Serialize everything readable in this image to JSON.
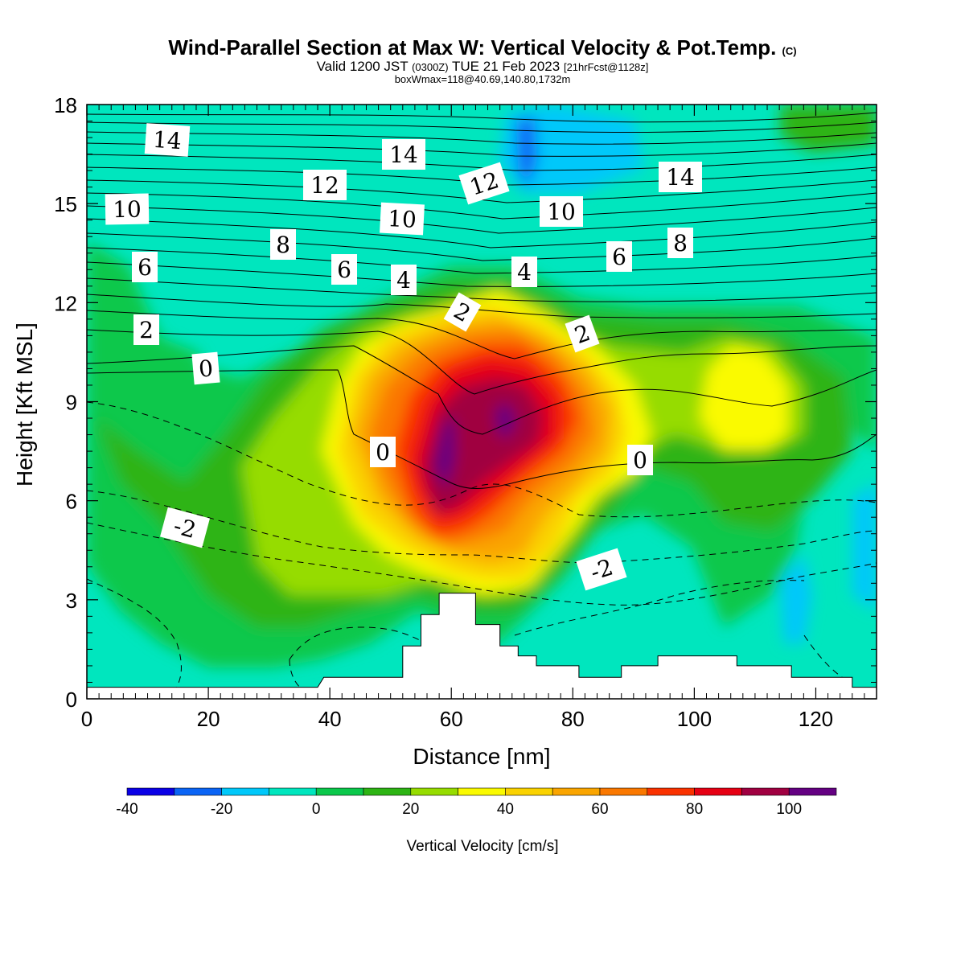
{
  "title": {
    "main": "Wind-Parallel Section at Max W: Vertical Velocity & Pot.Temp.",
    "main_mark": "(C)",
    "line2_a": "Valid 1200 JST",
    "line2_b": "(0300Z)",
    "line2_c": "TUE 21 Feb 2023",
    "line2_d": "[21hrFcst@1128z]",
    "line3": "boxWmax=118@40.69,140.80,1732m"
  },
  "chart_data": {
    "type": "heatmap",
    "xlabel": "Distance [nm]",
    "ylabel": "Height [Kft MSL]",
    "xlim": [
      0,
      130
    ],
    "ylim": [
      0,
      18
    ],
    "x_ticks": [
      0,
      20,
      40,
      60,
      80,
      100,
      120
    ],
    "y_ticks": [
      0,
      3,
      6,
      9,
      12,
      15,
      18
    ],
    "colorbar": {
      "label": "Vertical Velocity [cm/s]",
      "levels": [
        -40,
        -30,
        -20,
        -10,
        0,
        10,
        20,
        30,
        40,
        50,
        60,
        70,
        80,
        90,
        100,
        110
      ],
      "tick_labels": [
        "-40",
        "-20",
        "0",
        "20",
        "40",
        "60",
        "80",
        "100"
      ],
      "tick_values": [
        -40,
        -20,
        0,
        20,
        40,
        60,
        80,
        100
      ],
      "colors": [
        "#0a00e6",
        "#0a64f5",
        "#00c8fa",
        "#00e6be",
        "#0ac84b",
        "#2db414",
        "#96dc00",
        "#fafa00",
        "#fad200",
        "#faa500",
        "#fa7800",
        "#fa3200",
        "#e60014",
        "#a00041",
        "#640082"
      ]
    },
    "terrain_kft": [
      [
        0,
        0.35
      ],
      [
        38,
        0.35
      ],
      [
        39,
        0.65
      ],
      [
        52,
        0.65
      ],
      [
        52,
        1.6
      ],
      [
        55,
        1.6
      ],
      [
        55,
        2.55
      ],
      [
        58,
        2.55
      ],
      [
        58,
        3.2
      ],
      [
        62,
        3.2
      ],
      [
        62,
        3.2
      ],
      [
        64,
        3.2
      ],
      [
        64,
        2.25
      ],
      [
        68,
        2.25
      ],
      [
        68,
        1.6
      ],
      [
        71,
        1.6
      ],
      [
        71,
        1.3
      ],
      [
        74,
        1.3
      ],
      [
        74,
        1.0
      ],
      [
        81,
        1.0
      ],
      [
        81,
        0.65
      ],
      [
        88,
        0.65
      ],
      [
        88,
        1.0
      ],
      [
        94,
        1.0
      ],
      [
        94,
        1.3
      ],
      [
        107,
        1.3
      ],
      [
        107,
        1.0
      ],
      [
        116,
        1.0
      ],
      [
        116,
        0.65
      ],
      [
        126,
        0.65
      ],
      [
        126,
        0.35
      ],
      [
        130,
        0.35
      ]
    ],
    "w_peak": {
      "x": 58,
      "height_kft": 8.4,
      "value": 118
    },
    "theta_contours_labeled": [
      "14",
      "12",
      "10",
      "8",
      "6",
      "4",
      "2",
      "0",
      "-2"
    ]
  },
  "contour_labels": [
    {
      "text": "14"
    },
    {
      "text": "10"
    },
    {
      "text": "6"
    },
    {
      "text": "2"
    },
    {
      "text": "0"
    },
    {
      "text": "12"
    },
    {
      "text": "8"
    },
    {
      "text": "6"
    },
    {
      "text": "4"
    },
    {
      "text": "14"
    },
    {
      "text": "10"
    },
    {
      "text": "12"
    },
    {
      "text": "2"
    },
    {
      "text": "0"
    },
    {
      "text": "4"
    },
    {
      "text": "10"
    },
    {
      "text": "6"
    },
    {
      "text": "2"
    },
    {
      "text": "14"
    },
    {
      "text": "8"
    },
    {
      "text": "0"
    },
    {
      "text": "-2"
    },
    {
      "text": "-2"
    }
  ]
}
